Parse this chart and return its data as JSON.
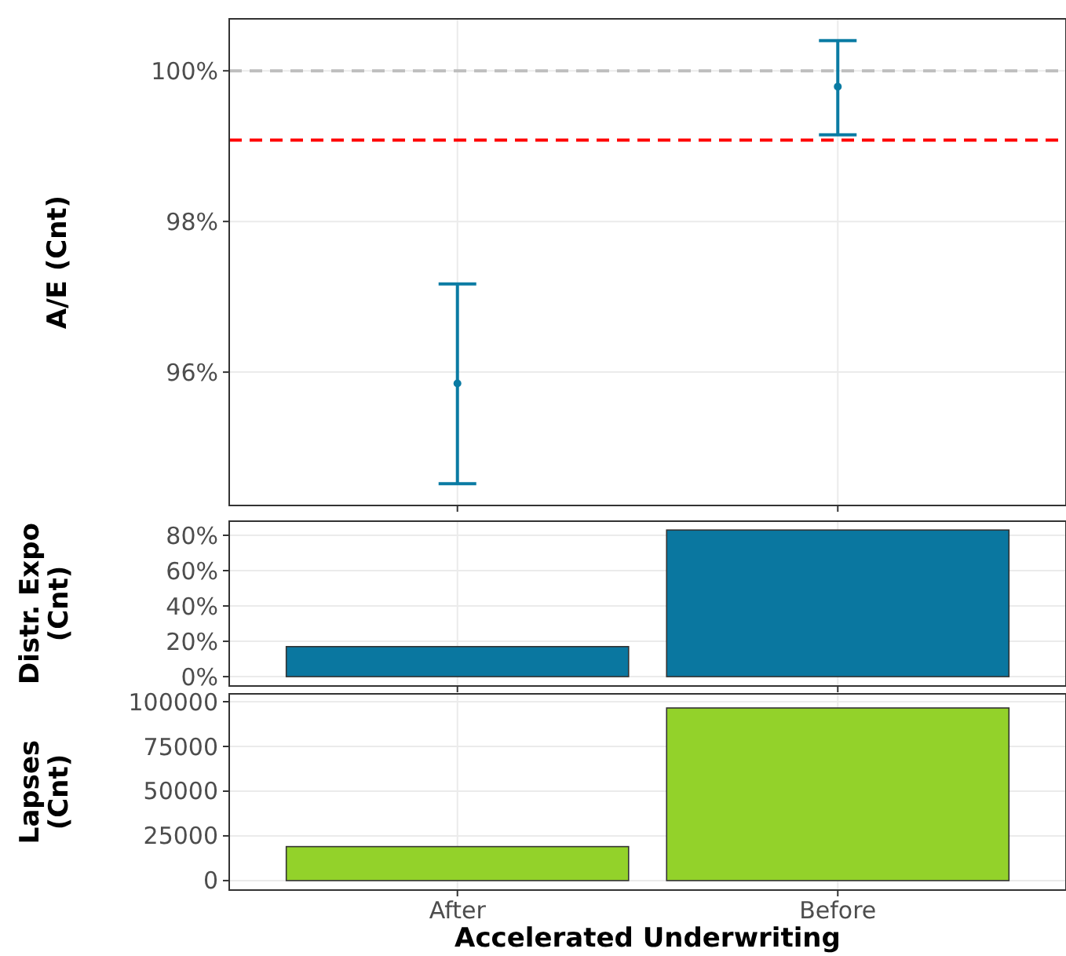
{
  "chart_data": [
    {
      "type": "scatter",
      "ylabel": "A/E (Cnt)",
      "categories": [
        null,
        null
      ],
      "values": [
        95.85,
        99.79
      ],
      "errors": [
        [
          94.52,
          97.17
        ],
        [
          99.15,
          100.4
        ]
      ],
      "color": "#0a7ba3",
      "marker": "circle",
      "ylim": [
        94.23,
        100.69
      ],
      "yticks": [
        {
          "value": 96,
          "label": "96%"
        },
        {
          "value": 98,
          "label": "98%"
        },
        {
          "value": 100,
          "label": "100%"
        }
      ],
      "grid": true,
      "tick_labels": "y",
      "ref_lines": [
        {
          "axis": "y",
          "value": 100,
          "color": "#bebebe",
          "line_style": "dashed"
        },
        {
          "axis": "y",
          "value": 99.08,
          "color": "#ff0000",
          "line_style": "dashed"
        }
      ]
    },
    {
      "type": "bar",
      "ylabel": "Distr. Expo (Cnt)",
      "categories": [
        null,
        null
      ],
      "values": [
        17,
        83
      ],
      "color": "#0a77a0",
      "ylim": [
        -5.3,
        88
      ],
      "yticks": [
        {
          "value": 0,
          "label": "0%"
        },
        {
          "value": 20,
          "label": "20%"
        },
        {
          "value": 40,
          "label": "40%"
        },
        {
          "value": 60,
          "label": "60%"
        },
        {
          "value": 80,
          "label": "80%"
        }
      ],
      "grid": true,
      "tick_labels": "y"
    },
    {
      "type": "bar",
      "ylabel": "Lapses (Cnt)",
      "xlabel": "Accelerated Underwriting",
      "categories": [
        "After",
        "Before"
      ],
      "values": [
        19000,
        96500
      ],
      "color": "#93d22a",
      "ylim": [
        -5300,
        104400
      ],
      "yticks": [
        0,
        25000,
        50000,
        75000,
        100000
      ],
      "grid": true
    }
  ]
}
